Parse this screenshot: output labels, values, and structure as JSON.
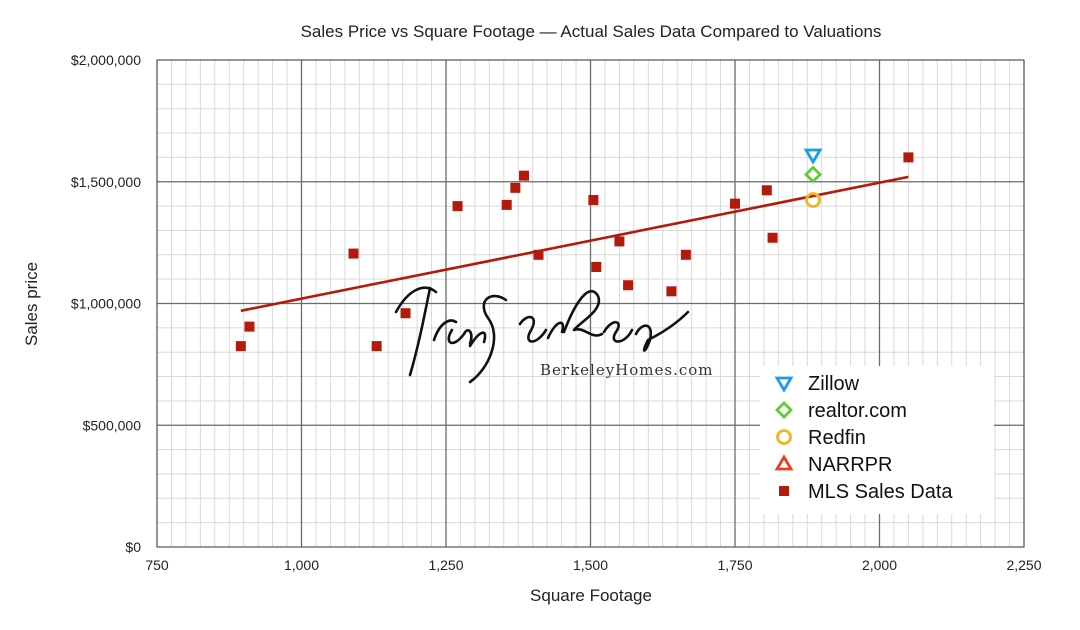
{
  "chart_data": {
    "type": "scatter",
    "title": "Sales Price vs Square Footage — Actual Sales Data Compared to Valuations",
    "xlabel": "Square Footage",
    "ylabel": "Sales price",
    "xlim": [
      750,
      2250
    ],
    "ylim": [
      0,
      2000000
    ],
    "x_ticks": [
      750,
      1000,
      1250,
      1500,
      1750,
      2000,
      2250
    ],
    "x_tick_labels": [
      "750",
      "1,000",
      "1,250",
      "1,500",
      "1,750",
      "2,000",
      "2,250"
    ],
    "y_ticks": [
      0,
      500000,
      1000000,
      1500000,
      2000000
    ],
    "y_tick_labels": [
      "$0",
      "$500,000",
      "$1,000,000",
      "$1,500,000",
      "$2,000,000"
    ],
    "grid": true,
    "legend_position": "bottom-right",
    "series": [
      {
        "name": "Zillow",
        "marker": "triangle-down",
        "color": "#1e9be8",
        "points": [
          [
            1885,
            1610000
          ]
        ]
      },
      {
        "name": "realtor.com",
        "marker": "diamond",
        "color": "#5dcc30",
        "points": [
          [
            1885,
            1530000
          ]
        ]
      },
      {
        "name": "Redfin",
        "marker": "circle",
        "color": "#f2b51f",
        "points": [
          [
            1885,
            1425000
          ]
        ]
      },
      {
        "name": "NARRPR",
        "marker": "triangle-up",
        "color": "#f03c1c",
        "points": []
      },
      {
        "name": "MLS Sales Data",
        "marker": "square",
        "color": "#b31a0c",
        "points": [
          [
            895,
            825000
          ],
          [
            910,
            905000
          ],
          [
            1090,
            1205000
          ],
          [
            1130,
            825000
          ],
          [
            1180,
            960000
          ],
          [
            1270,
            1400000
          ],
          [
            1355,
            1405000
          ],
          [
            1370,
            1475000
          ],
          [
            1385,
            1525000
          ],
          [
            1410,
            1200000
          ],
          [
            1505,
            1425000
          ],
          [
            1510,
            1150000
          ],
          [
            1550,
            1255000
          ],
          [
            1565,
            1075000
          ],
          [
            1640,
            1050000
          ],
          [
            1665,
            1200000
          ],
          [
            1750,
            1410000
          ],
          [
            1805,
            1465000
          ],
          [
            1815,
            1270000
          ],
          [
            2050,
            1600000
          ]
        ]
      }
    ],
    "trendline": {
      "color": "#b31a0c",
      "points": [
        [
          895,
          970000
        ],
        [
          2050,
          1520000
        ]
      ]
    }
  },
  "watermark": {
    "signature": "Ira Serkes",
    "site": "BerkeleyHomes.com"
  }
}
